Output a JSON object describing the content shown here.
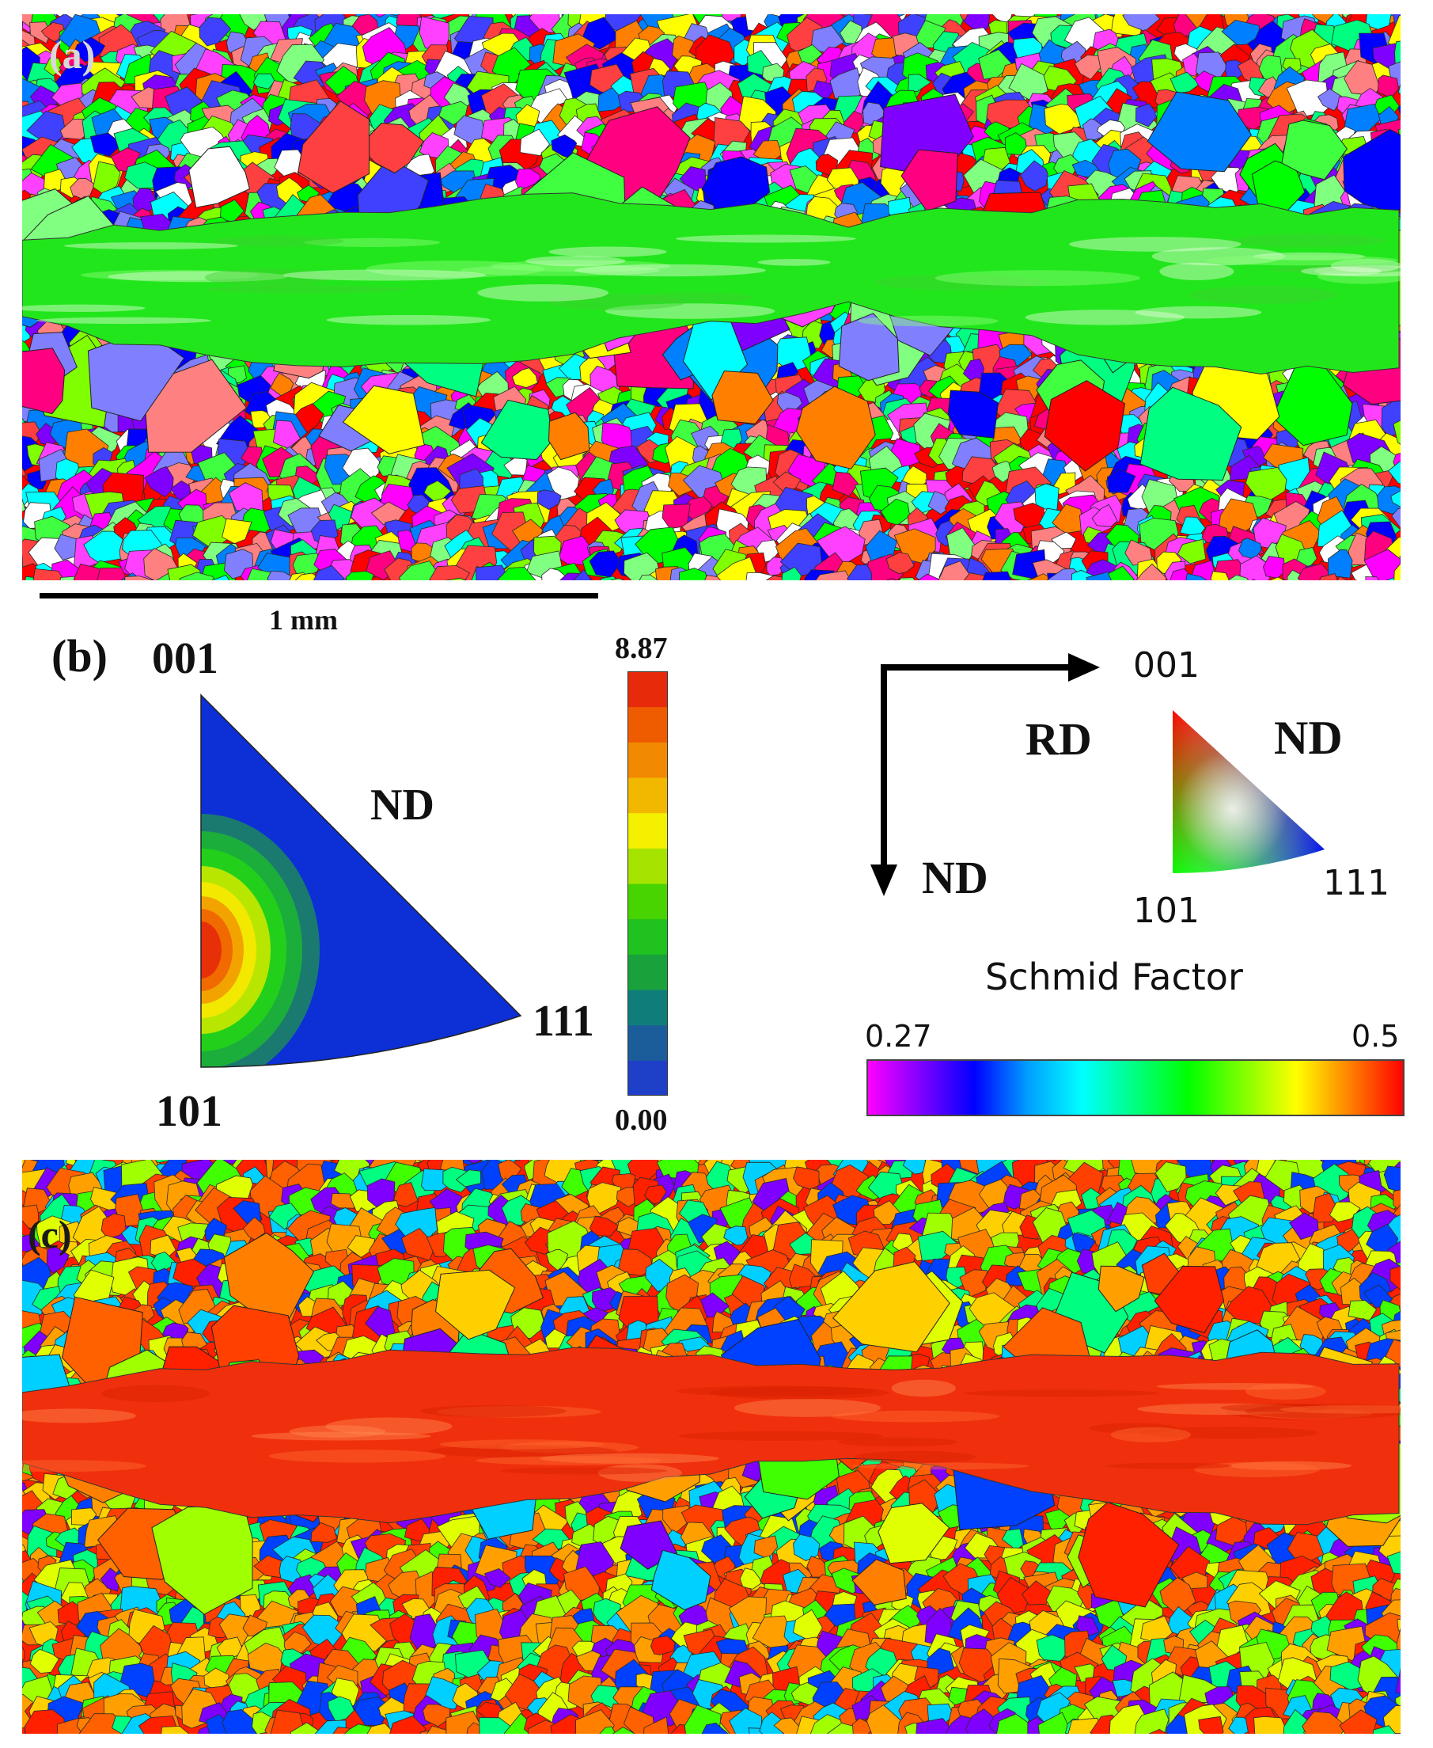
{
  "panels": {
    "a": {
      "label": "(a)"
    },
    "b": {
      "label": "(b)"
    },
    "c": {
      "label": "(c)"
    }
  },
  "scale_bar": {
    "label": "1 mm"
  },
  "inverse_pole_figure": {
    "vertex_001": "001",
    "vertex_101": "101",
    "vertex_111": "111",
    "direction": "ND",
    "colorbar": {
      "max_label": "8.87",
      "min_label": "0.00",
      "max": 8.87,
      "min": 0.0,
      "steps": [
        "#1e3fc8",
        "#1b5d9a",
        "#0f7e7a",
        "#19a23c",
        "#1fc21f",
        "#48d400",
        "#a6e400",
        "#f4f000",
        "#f2b800",
        "#f18a00",
        "#ef5c00",
        "#e62a0a"
      ]
    }
  },
  "legend": {
    "axis_horizontal": "RD",
    "axis_vertical": "ND",
    "triangle_direction": "ND",
    "vertex_001": "001",
    "vertex_101": "101",
    "vertex_111": "111"
  },
  "schmid_factor": {
    "title": "Schmid Factor",
    "min_label": "0.27",
    "max_label": "0.5",
    "min": 0.27,
    "max": 0.5,
    "gradient": [
      "#ff00ff",
      "#8000ff",
      "#0000ff",
      "#00a0ff",
      "#00ffff",
      "#00ff80",
      "#00ff00",
      "#80ff00",
      "#ffff00",
      "#ff8000",
      "#ff0000"
    ]
  },
  "colors": {
    "ipf_palette": [
      "#ff0000",
      "#00ff00",
      "#0000ff",
      "#ff00ff",
      "#00ffff",
      "#ffff00",
      "#ff8000",
      "#8000ff",
      "#ff0080",
      "#00ff80",
      "#80ff00",
      "#0080ff",
      "#ff8080",
      "#80ff80",
      "#8080ff",
      "#ffffff",
      "#ff4040",
      "#40ff40",
      "#4040ff",
      "#ff40ff"
    ],
    "ipf_band": "#22e61c",
    "sf_palette": [
      "#ff2000",
      "#ff4000",
      "#ff6000",
      "#ff8000",
      "#ffa000",
      "#ffd000",
      "#e0ff00",
      "#a0ff00",
      "#40ff00",
      "#00ff80",
      "#00d0ff",
      "#0040ff",
      "#8000ff"
    ],
    "sf_band": "#f0300c"
  }
}
